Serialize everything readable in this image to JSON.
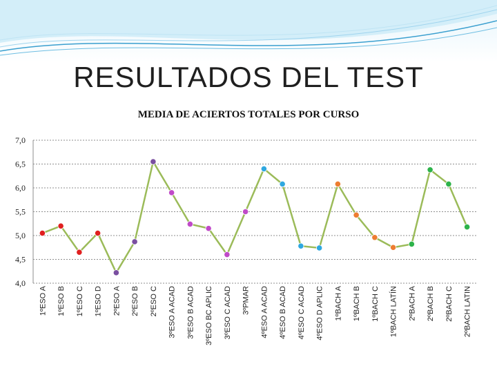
{
  "slide": {
    "title": "RESULTADOS DEL TEST",
    "colors": {
      "band_dark": "#3a9fcf",
      "band_light": "#bfe4f4",
      "line": "#9bbb59",
      "grid": "#8c8c8c"
    }
  },
  "chart_data": {
    "type": "line",
    "title": "MEDIA DE ACIERTOS TOTALES POR CURSO",
    "xlabel": "",
    "ylabel": "",
    "ylim": [
      4.0,
      7.0
    ],
    "yticks": [
      "4,0",
      "4,5",
      "5,0",
      "5,5",
      "6,0",
      "6,5",
      "7,0"
    ],
    "ytick_values": [
      4.0,
      4.5,
      5.0,
      5.5,
      6.0,
      6.5,
      7.0
    ],
    "grid": true,
    "legend": "none",
    "categories": [
      "1ºESO A",
      "1ºESO B",
      "1ºESO C",
      "1ºESO D",
      "2ºESO A",
      "2ºESO B",
      "2ºESO C",
      "3ºESO A ACAD",
      "3ºESO B ACAD",
      "3ºESO BC APLIC",
      "3ºESO C ACAD",
      "3ºPMAR",
      "4ºESO A ACAD",
      "4ºESO B ACAD",
      "4ºESO C ACAD",
      "4ºESO D APLIC",
      "1ºBACH A",
      "1ºBACH B",
      "1ºBACH C",
      "1ºBACH LATÍN",
      "2ºBACH A",
      "2ºBACH B",
      "2ºBACH C",
      "2ºBACH LATIN"
    ],
    "series": [
      {
        "values": [
          5.05,
          5.2,
          4.65,
          5.05,
          4.22,
          4.87,
          6.55,
          5.9,
          5.24,
          5.15,
          4.6,
          5.5,
          6.4,
          6.08,
          4.78,
          4.74,
          6.08,
          5.43,
          4.96,
          4.75,
          4.82,
          6.38,
          6.08,
          5.18
        ],
        "line_color": "#9bbb59",
        "marker_colors": [
          "#e02020",
          "#e02020",
          "#e02020",
          "#e02020",
          "#7a4fa0",
          "#7a4fa0",
          "#7a4fa0",
          "#c04ac8",
          "#c04ac8",
          "#c04ac8",
          "#c04ac8",
          "#c04ac8",
          "#2fa8e0",
          "#2fa8e0",
          "#2fa8e0",
          "#2fa8e0",
          "#ed7d31",
          "#ed7d31",
          "#ed7d31",
          "#ed7d31",
          "#2db34a",
          "#2db34a",
          "#2db34a",
          "#2db34a"
        ]
      }
    ]
  }
}
